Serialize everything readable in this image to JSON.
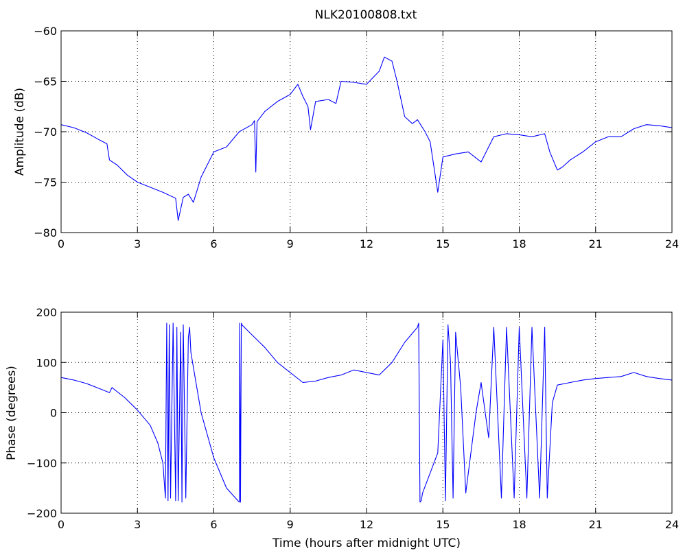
{
  "chart_data": [
    {
      "type": "line",
      "title": "NLK20100808.txt",
      "xlabel": "",
      "ylabel": "Amplitude (dB)",
      "xlim": [
        0,
        24
      ],
      "ylim": [
        -80,
        -60
      ],
      "xticks": [
        "0",
        "3",
        "6",
        "9",
        "12",
        "15",
        "18",
        "21",
        "24"
      ],
      "yticks": [
        "-80",
        "-75",
        "-70",
        "-65",
        "-60"
      ],
      "grid": true,
      "series": [
        {
          "color": "#0000ff",
          "x": [
            0,
            0.5,
            1.0,
            1.5,
            1.8,
            1.9,
            2.2,
            2.6,
            3.0,
            3.5,
            4.0,
            4.5,
            4.6,
            4.8,
            5.0,
            5.2,
            5.5,
            6.0,
            6.5,
            7.0,
            7.5,
            7.6,
            7.65,
            7.7,
            8.0,
            8.5,
            9.0,
            9.3,
            9.5,
            9.7,
            9.8,
            10.0,
            10.5,
            10.8,
            11.0,
            11.5,
            12.0,
            12.5,
            12.7,
            13.0,
            13.2,
            13.5,
            13.8,
            14.0,
            14.3,
            14.5,
            14.8,
            15.0,
            15.5,
            16.0,
            16.5,
            17.0,
            17.5,
            18.0,
            18.5,
            19.0,
            19.2,
            19.5,
            19.7,
            20.0,
            20.5,
            21.0,
            21.5,
            22.0,
            22.5,
            23.0,
            23.5,
            24.0
          ],
          "y": [
            -69.3,
            -69.6,
            -70.1,
            -70.8,
            -71.2,
            -72.8,
            -73.3,
            -74.3,
            -75.0,
            -75.5,
            -76.0,
            -76.6,
            -78.8,
            -76.5,
            -76.2,
            -77.0,
            -74.5,
            -72.0,
            -71.5,
            -70.0,
            -69.3,
            -68.9,
            -74.0,
            -69.0,
            -68.0,
            -67.0,
            -66.3,
            -65.3,
            -66.5,
            -67.5,
            -69.8,
            -67.0,
            -66.8,
            -67.2,
            -65.0,
            -65.1,
            -65.3,
            -64.0,
            -62.6,
            -63.0,
            -65.0,
            -68.5,
            -69.2,
            -68.8,
            -70.0,
            -71.0,
            -76.0,
            -72.5,
            -72.2,
            -72.0,
            -73.0,
            -70.5,
            -70.2,
            -70.3,
            -70.5,
            -70.2,
            -72.0,
            -73.8,
            -73.5,
            -72.8,
            -72.0,
            -71.0,
            -70.5,
            -70.5,
            -69.7,
            -69.3,
            -69.4,
            -69.6
          ]
        }
      ]
    },
    {
      "type": "line",
      "title": "",
      "xlabel": "Time (hours after midnight UTC)",
      "ylabel": "Phase (degrees)",
      "xlim": [
        0,
        24
      ],
      "ylim": [
        -200,
        200
      ],
      "xticks": [
        "0",
        "3",
        "6",
        "9",
        "12",
        "15",
        "18",
        "21",
        "24"
      ],
      "yticks": [
        "-200",
        "-100",
        "0",
        "100",
        "200"
      ],
      "grid": true,
      "series": [
        {
          "color": "#0000ff",
          "x": [
            0,
            0.5,
            1.0,
            1.5,
            1.9,
            2.0,
            2.5,
            3.0,
            3.5,
            3.8,
            4.0,
            4.1,
            4.15,
            4.2,
            4.25,
            4.3,
            4.4,
            4.5,
            4.55,
            4.6,
            4.7,
            4.75,
            4.8,
            4.9,
            5.0,
            5.05,
            5.1,
            5.3,
            5.5,
            6.0,
            6.5,
            7.0,
            7.02,
            7.05,
            7.08,
            7.1,
            7.5,
            8.0,
            8.5,
            9.0,
            9.5,
            10.0,
            10.5,
            11.0,
            11.5,
            12.0,
            12.5,
            13.0,
            13.5,
            14.0,
            14.05,
            14.1,
            14.15,
            14.2,
            14.5,
            14.8,
            15.0,
            15.1,
            15.2,
            15.3,
            15.4,
            15.5,
            15.7,
            15.9,
            16.0,
            16.3,
            16.5,
            16.8,
            17.0,
            17.3,
            17.5,
            17.8,
            18.0,
            18.3,
            18.5,
            18.8,
            19.0,
            19.1,
            19.3,
            19.5,
            20.0,
            20.5,
            21.0,
            21.5,
            22.0,
            22.5,
            23.0,
            23.5,
            24.0
          ],
          "y": [
            70,
            65,
            58,
            48,
            40,
            50,
            30,
            5,
            -25,
            -60,
            -100,
            -170,
            178,
            -175,
            175,
            -170,
            178,
            -175,
            170,
            -175,
            160,
            -178,
            175,
            -170,
            150,
            170,
            120,
            60,
            0,
            -90,
            -150,
            -178,
            178,
            -178,
            178,
            175,
            155,
            130,
            100,
            80,
            60,
            63,
            70,
            75,
            85,
            80,
            75,
            100,
            140,
            170,
            178,
            -178,
            -175,
            -160,
            -120,
            -80,
            145,
            -175,
            175,
            100,
            -170,
            160,
            50,
            -160,
            -120,
            0,
            60,
            -50,
            170,
            -170,
            170,
            -170,
            170,
            -170,
            170,
            -170,
            170,
            -170,
            20,
            55,
            60,
            65,
            68,
            70,
            72,
            80,
            72,
            68,
            65
          ]
        }
      ]
    }
  ]
}
